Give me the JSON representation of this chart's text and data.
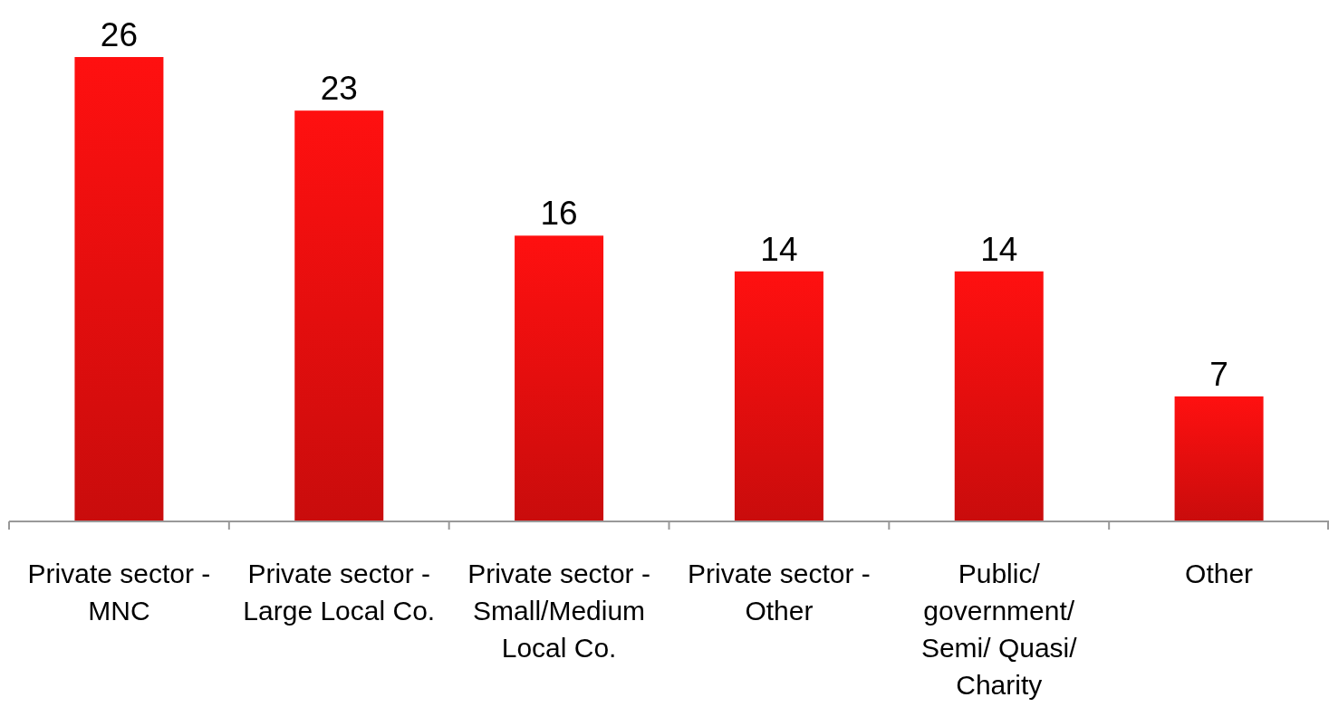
{
  "chart_data": {
    "type": "bar",
    "categories": [
      "Private sector - MNC",
      "Private sector - Large Local Co.",
      "Private sector - Small/Medium Local Co.",
      "Private sector - Other",
      "Public/ government/ Semi/ Quasi/ Charity",
      "Other"
    ],
    "values": [
      26,
      23,
      16,
      14,
      14,
      7
    ],
    "color": "#e80e0e",
    "data_labels": true
  }
}
